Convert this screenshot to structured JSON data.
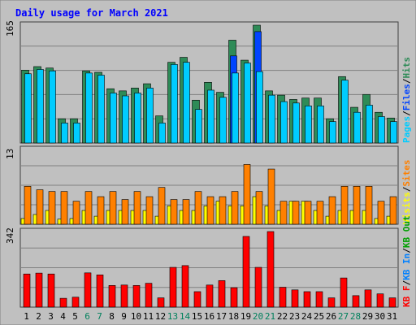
{
  "chart_data": [
    {
      "type": "bar",
      "panel": "pages-files-hits",
      "title": "Daily usage for March 2021",
      "ymax_label": "165",
      "ylim": [
        0,
        165
      ],
      "categories": [
        "1",
        "2",
        "3",
        "4",
        "5",
        "6",
        "7",
        "8",
        "9",
        "10",
        "11",
        "12",
        "13",
        "14",
        "15",
        "16",
        "17",
        "18",
        "19",
        "20",
        "21",
        "22",
        "23",
        "24",
        "25",
        "26",
        "27",
        "28",
        "29",
        "30",
        "31"
      ],
      "weekend_days": [
        "6",
        "7",
        "13",
        "14",
        "20",
        "21",
        "27",
        "28"
      ],
      "series": [
        {
          "name": "Hits",
          "color": "#2e8b57",
          "values": [
            102,
            107,
            105,
            34,
            34,
            101,
            99,
            76,
            73,
            77,
            83,
            38,
            113,
            120,
            60,
            85,
            71,
            144,
            116,
            165,
            73,
            67,
            61,
            63,
            63,
            34,
            93,
            50,
            68,
            43,
            35
          ]
        },
        {
          "name": "Files",
          "color": "#0044ff",
          "values": [
            0,
            0,
            0,
            0,
            0,
            0,
            0,
            0,
            0,
            0,
            0,
            0,
            0,
            0,
            0,
            0,
            0,
            122,
            0,
            156,
            0,
            0,
            0,
            0,
            0,
            0,
            0,
            0,
            0,
            0,
            0
          ]
        },
        {
          "name": "Pages",
          "color": "#00ccff",
          "values": [
            97,
            103,
            101,
            28,
            28,
            98,
            95,
            70,
            66,
            70,
            77,
            28,
            110,
            113,
            47,
            74,
            64,
            98,
            112,
            100,
            67,
            58,
            56,
            52,
            52,
            30,
            88,
            43,
            53,
            37,
            30
          ]
        }
      ],
      "ylabel_parts": [
        "Pages",
        "/",
        "Files",
        "/",
        "Hits"
      ]
    },
    {
      "type": "bar",
      "panel": "visits-sites",
      "ymax_label": "13",
      "ylim": [
        0,
        13
      ],
      "categories": [
        "1",
        "2",
        "3",
        "4",
        "5",
        "6",
        "7",
        "8",
        "9",
        "10",
        "11",
        "12",
        "13",
        "14",
        "15",
        "16",
        "17",
        "18",
        "19",
        "20",
        "21",
        "22",
        "23",
        "24",
        "25",
        "26",
        "27",
        "28",
        "29",
        "30",
        "31"
      ],
      "series": [
        {
          "name": "Sites",
          "color": "#ff8000",
          "values": [
            6.6,
            6,
            5.7,
            5.7,
            4,
            5.7,
            4.8,
            5.7,
            4.3,
            5.7,
            4.8,
            6.4,
            4.3,
            4.3,
            5.7,
            4.8,
            4.8,
            5.7,
            10.4,
            5.7,
            9.6,
            4,
            4,
            4,
            4,
            4.8,
            6.6,
            6.6,
            6.6,
            4,
            4.8
          ]
        },
        {
          "name": "Visits",
          "color": "#ffff00",
          "values": [
            1,
            1.7,
            2.4,
            0.9,
            1,
            2.4,
            1.4,
            2.4,
            2.4,
            2.4,
            2.4,
            1.4,
            3.2,
            2.4,
            2.4,
            3.2,
            4,
            3.2,
            3.2,
            4.8,
            3.2,
            2.4,
            4,
            4,
            2.4,
            1.4,
            2.4,
            2.4,
            2.4,
            1,
            1.4
          ]
        }
      ],
      "ylabel_parts": [
        "Visits",
        "/",
        "Sites"
      ]
    },
    {
      "type": "bar",
      "panel": "kbytes",
      "ymax_label": "342",
      "ylim": [
        0,
        342
      ],
      "categories": [
        "1",
        "2",
        "3",
        "4",
        "5",
        "6",
        "7",
        "8",
        "9",
        "10",
        "11",
        "12",
        "13",
        "14",
        "15",
        "16",
        "17",
        "18",
        "19",
        "20",
        "21",
        "22",
        "23",
        "24",
        "25",
        "26",
        "27",
        "28",
        "29",
        "30",
        "31"
      ],
      "series": [
        {
          "name": "KB F",
          "color": "#ff0000",
          "values": [
            150,
            154,
            150,
            40,
            45,
            155,
            146,
            98,
            100,
            98,
            108,
            42,
            180,
            188,
            70,
            100,
            120,
            88,
            320,
            180,
            342,
            90,
            78,
            70,
            70,
            42,
            132,
            52,
            78,
            60,
            42
          ]
        }
      ],
      "ylabel_parts": [
        "KB F",
        "/",
        "KB In",
        "/",
        "KB Out"
      ]
    }
  ],
  "colors": {
    "background": "#c0c0c0",
    "panel": "#c0c0c0",
    "gridline": "#808080",
    "title": "#0000ff",
    "axis_text": "#000000",
    "weekend_text": "#00805c",
    "kb_in": "#0080ff",
    "kb_out": "#00a000"
  }
}
